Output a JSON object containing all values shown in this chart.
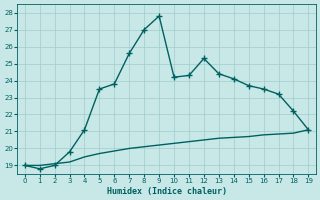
{
  "xlabel": "Humidex (Indice chaleur)",
  "x": [
    0,
    1,
    2,
    3,
    4,
    5,
    6,
    7,
    8,
    9,
    10,
    11,
    12,
    13,
    14,
    15,
    16,
    17,
    18,
    19
  ],
  "line1_y": [
    19.0,
    18.8,
    19.0,
    19.8,
    21.1,
    23.5,
    23.8,
    25.6,
    27.0,
    27.8,
    24.2,
    24.3,
    25.3,
    24.4,
    24.1,
    23.7,
    23.5,
    23.2,
    22.2,
    21.1
  ],
  "line2_y": [
    19.0,
    19.0,
    19.1,
    19.2,
    19.5,
    19.7,
    19.85,
    20.0,
    20.1,
    20.2,
    20.3,
    20.4,
    20.5,
    20.6,
    20.65,
    20.7,
    20.8,
    20.85,
    20.9,
    21.1
  ],
  "line_color": "#006060",
  "bg_color": "#c8e8e8",
  "grid_color": "#a0cccc",
  "ylim": [
    18.5,
    28.5
  ],
  "xlim": [
    -0.5,
    19.5
  ],
  "yticks": [
    19,
    20,
    21,
    22,
    23,
    24,
    25,
    26,
    27,
    28
  ],
  "xticks": [
    0,
    1,
    2,
    3,
    4,
    5,
    6,
    7,
    8,
    9,
    10,
    11,
    12,
    13,
    14,
    15,
    16,
    17,
    18,
    19
  ],
  "marker": "+",
  "marker_size": 4,
  "line_width": 1.0
}
